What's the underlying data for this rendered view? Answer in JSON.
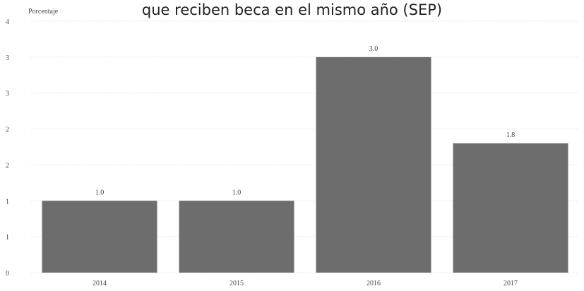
{
  "chart_data": {
    "type": "bar",
    "title": "que reciben beca en el mismo año (SEP)",
    "ylabel": "Porcentaje",
    "xlabel": "",
    "categories": [
      "2014",
      "2015",
      "2016",
      "2017"
    ],
    "values": [
      1.0,
      1.0,
      3.0,
      1.8
    ],
    "value_labels": [
      "1.0",
      "1.0",
      "3.0",
      "1.8"
    ],
    "ytick_labels": [
      "0",
      "1",
      "1",
      "2",
      "2",
      "3",
      "3",
      "4"
    ],
    "ylim": [
      0,
      3.5
    ],
    "grid": true,
    "bar_color": "#6d6d6d"
  }
}
